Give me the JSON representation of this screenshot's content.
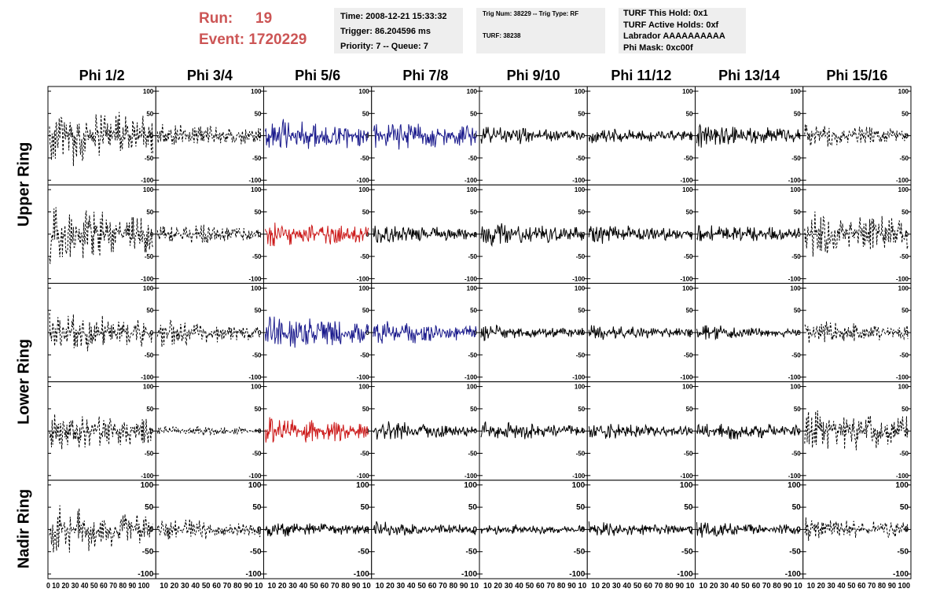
{
  "run_info": {
    "run_label": "Run:",
    "run_value": "19",
    "event_label": "Event:",
    "event_value": "1720229"
  },
  "header_box_1": {
    "time": "Time: 2008-12-21 15:33:32",
    "trigger": "Trigger: 86.204596 ms",
    "priority": "Priority: 7 -- Queue: 7"
  },
  "header_box_2": {
    "trig": "Trig Num: 38229 -- Trig Type: RF",
    "turf": "TURF: 38238"
  },
  "header_box_3": {
    "this_hold": "TURF This Hold: 0x1",
    "active_holds": "TURF Active Holds: 0xf",
    "labrador": "Labrador AAAAAAAAAA",
    "phi_mask": "Phi Mask: 0xc00f"
  },
  "columns": [
    "Phi 1/2",
    "Phi 3/4",
    "Phi 5/6",
    "Phi 7/8",
    "Phi 9/10",
    "Phi 11/12",
    "Phi 13/14",
    "Phi 15/16"
  ],
  "rings": [
    "Upper Ring",
    "Lower Ring",
    "Nadir Ring"
  ],
  "colors": {
    "trace_default": "#000000",
    "trace_blue": "#1a1a8c",
    "trace_red": "#cc1a1a",
    "run_text": "#cc5555",
    "box_bg": "#eeeeee"
  },
  "chart_data": {
    "type": "line",
    "grid_rows": 5,
    "grid_cols": 8,
    "x_range": [
      0,
      100
    ],
    "y_range": [
      -100,
      100
    ],
    "y_ticks": [
      100,
      50,
      0,
      -50,
      -100
    ],
    "x_tick_labels_first": "0 10 20 30 40 50 60 70 80 90 100",
    "x_tick_labels_mid": "10 20 30 40 50 60 70 80 90 10",
    "x_tick_labels_last": "10 20 30 40 50 60 70 80 90 100",
    "trace_color_map": [
      [
        "black",
        "black",
        "blue",
        "blue",
        "black",
        "black",
        "black",
        "black"
      ],
      [
        "black",
        "black",
        "red",
        "black",
        "black",
        "black",
        "black",
        "black"
      ],
      [
        "black",
        "black",
        "blue",
        "blue",
        "black",
        "black",
        "black",
        "black"
      ],
      [
        "black",
        "black",
        "red",
        "black",
        "black",
        "black",
        "black",
        "black"
      ],
      [
        "black",
        "black",
        "black",
        "black",
        "black",
        "black",
        "black",
        "black"
      ]
    ],
    "trace_dashed_map": [
      [
        true,
        true,
        false,
        false,
        false,
        false,
        false,
        true
      ],
      [
        true,
        true,
        false,
        false,
        false,
        false,
        false,
        true
      ],
      [
        true,
        true,
        false,
        false,
        false,
        false,
        false,
        true
      ],
      [
        true,
        true,
        false,
        false,
        false,
        false,
        false,
        true
      ],
      [
        true,
        true,
        false,
        false,
        false,
        false,
        false,
        true
      ]
    ],
    "amplitude_map": [
      [
        85,
        35,
        45,
        40,
        25,
        20,
        30,
        30
      ],
      [
        75,
        30,
        35,
        25,
        30,
        25,
        25,
        65
      ],
      [
        55,
        35,
        45,
        35,
        20,
        20,
        20,
        30
      ],
      [
        55,
        15,
        35,
        25,
        25,
        20,
        25,
        65
      ],
      [
        65,
        30,
        20,
        20,
        15,
        20,
        20,
        30
      ]
    ]
  }
}
